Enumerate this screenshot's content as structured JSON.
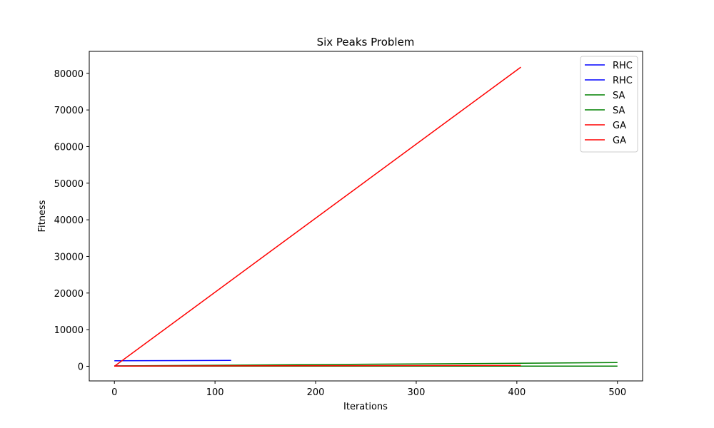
{
  "chart_data": {
    "type": "line",
    "title": "Six Peaks Problem",
    "xlabel": "Iterations",
    "ylabel": "Fitness",
    "xlim": [
      -25,
      525
    ],
    "ylim": [
      -4000,
      86000
    ],
    "xticks": [
      0,
      100,
      200,
      300,
      400,
      500
    ],
    "yticks": [
      0,
      10000,
      20000,
      30000,
      40000,
      50000,
      60000,
      70000,
      80000
    ],
    "grid": false,
    "legend_position": "top-right",
    "series": [
      {
        "name": "RHC",
        "color": "#0000ff",
        "x": [
          0,
          116
        ],
        "y": [
          1500,
          1600
        ]
      },
      {
        "name": "RHC",
        "color": "#0000ff",
        "x": [
          0,
          116
        ],
        "y": [
          100,
          150
        ]
      },
      {
        "name": "SA",
        "color": "#008000",
        "x": [
          0,
          500
        ],
        "y": [
          100,
          1000
        ]
      },
      {
        "name": "SA",
        "color": "#008000",
        "x": [
          0,
          500
        ],
        "y": [
          50,
          60
        ]
      },
      {
        "name": "GA",
        "color": "#ff0000",
        "x": [
          0,
          404
        ],
        "y": [
          0,
          81700
        ]
      },
      {
        "name": "GA",
        "color": "#ff0000",
        "x": [
          0,
          404
        ],
        "y": [
          50,
          250
        ]
      }
    ]
  }
}
